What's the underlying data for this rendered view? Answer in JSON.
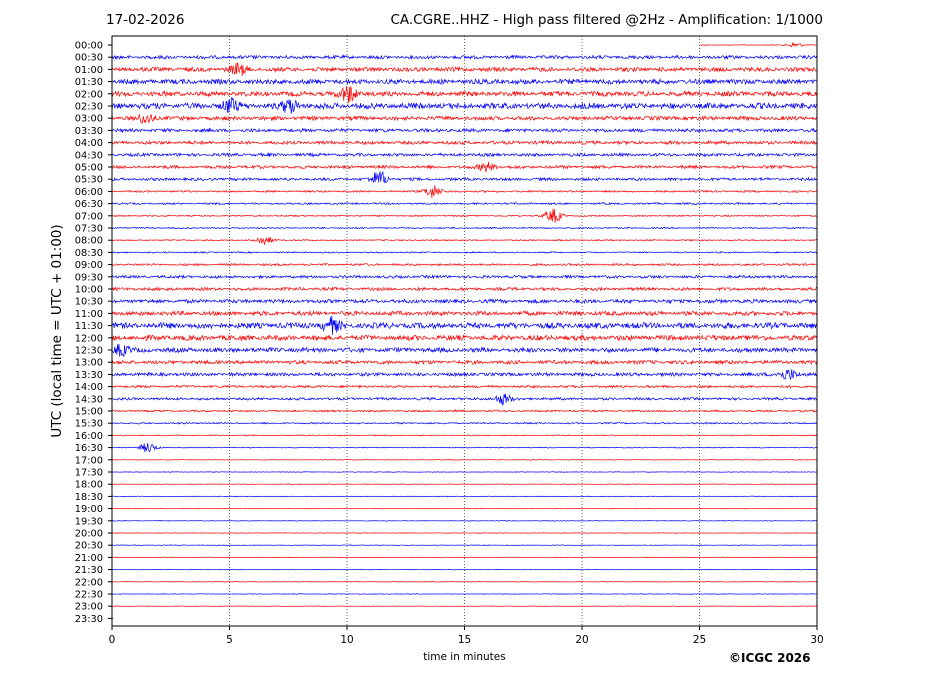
{
  "header": {
    "date": "17-02-2026",
    "title": "CA.CGRE..HHZ - High pass filtered @2Hz - Amplification: 1/1000"
  },
  "copyright": "©ICGC 2026",
  "chart_data": {
    "type": "line",
    "title": "CA.CGRE..HHZ - High pass filtered @2Hz - Amplification: 1/1000",
    "xlabel": "time in minutes",
    "ylabel": "UTC (local time = UTC + 01:00)",
    "xlim": [
      0,
      30
    ],
    "xticks": [
      0,
      5,
      10,
      15,
      20,
      25,
      30
    ],
    "grid": "vertical dotted lines at x ticks",
    "trace_colors": [
      "#ff0000",
      "#0000ff"
    ],
    "rows": [
      "00:00",
      "00:30",
      "01:00",
      "01:30",
      "02:00",
      "02:30",
      "03:00",
      "03:30",
      "04:00",
      "04:30",
      "05:00",
      "05:30",
      "06:00",
      "06:30",
      "07:00",
      "07:30",
      "08:00",
      "08:30",
      "09:00",
      "09:30",
      "10:00",
      "10:30",
      "11:00",
      "11:30",
      "12:00",
      "12:30",
      "13:00",
      "13:30",
      "14:00",
      "14:30",
      "15:00",
      "15:30",
      "16:00",
      "16:30",
      "17:00",
      "17:30",
      "18:00",
      "18:30",
      "19:00",
      "19:30",
      "20:00",
      "20:30",
      "21:00",
      "21:30",
      "22:00",
      "22:30",
      "23:00",
      "23:30"
    ],
    "noise_level": [
      0.12,
      0.55,
      0.7,
      0.8,
      0.8,
      0.95,
      0.65,
      0.55,
      0.55,
      0.5,
      0.5,
      0.45,
      0.3,
      0.3,
      0.22,
      0.22,
      0.22,
      0.22,
      0.35,
      0.45,
      0.5,
      0.6,
      0.7,
      0.95,
      0.85,
      0.75,
      0.6,
      0.55,
      0.4,
      0.4,
      0.3,
      0.25,
      0.18,
      0.15,
      0.1,
      0.1,
      0.1,
      0.1,
      0.1,
      0.1,
      0.1,
      0.1,
      0.1,
      0.1,
      0.1,
      0.1,
      0.1,
      0.04
    ],
    "events": [
      {
        "row": 0,
        "x": 29.1,
        "amp": 0.6
      },
      {
        "row": 2,
        "x": 5.4,
        "amp": 1.2
      },
      {
        "row": 4,
        "x": 10.1,
        "amp": 2.0
      },
      {
        "row": 5,
        "x": 5.0,
        "amp": 1.6
      },
      {
        "row": 5,
        "x": 7.6,
        "amp": 1.5
      },
      {
        "row": 6,
        "x": 1.5,
        "amp": 1.2
      },
      {
        "row": 10,
        "x": 16.0,
        "amp": 1.3
      },
      {
        "row": 11,
        "x": 11.4,
        "amp": 1.8
      },
      {
        "row": 12,
        "x": 13.6,
        "amp": 1.8
      },
      {
        "row": 14,
        "x": 18.8,
        "amp": 1.6
      },
      {
        "row": 16,
        "x": 6.5,
        "amp": 1.0
      },
      {
        "row": 23,
        "x": 9.3,
        "amp": 1.6
      },
      {
        "row": 25,
        "x": 0.3,
        "amp": 1.6
      },
      {
        "row": 27,
        "x": 28.7,
        "amp": 1.6
      },
      {
        "row": 29,
        "x": 16.6,
        "amp": 1.4
      },
      {
        "row": 33,
        "x": 1.5,
        "amp": 1.2
      }
    ]
  }
}
